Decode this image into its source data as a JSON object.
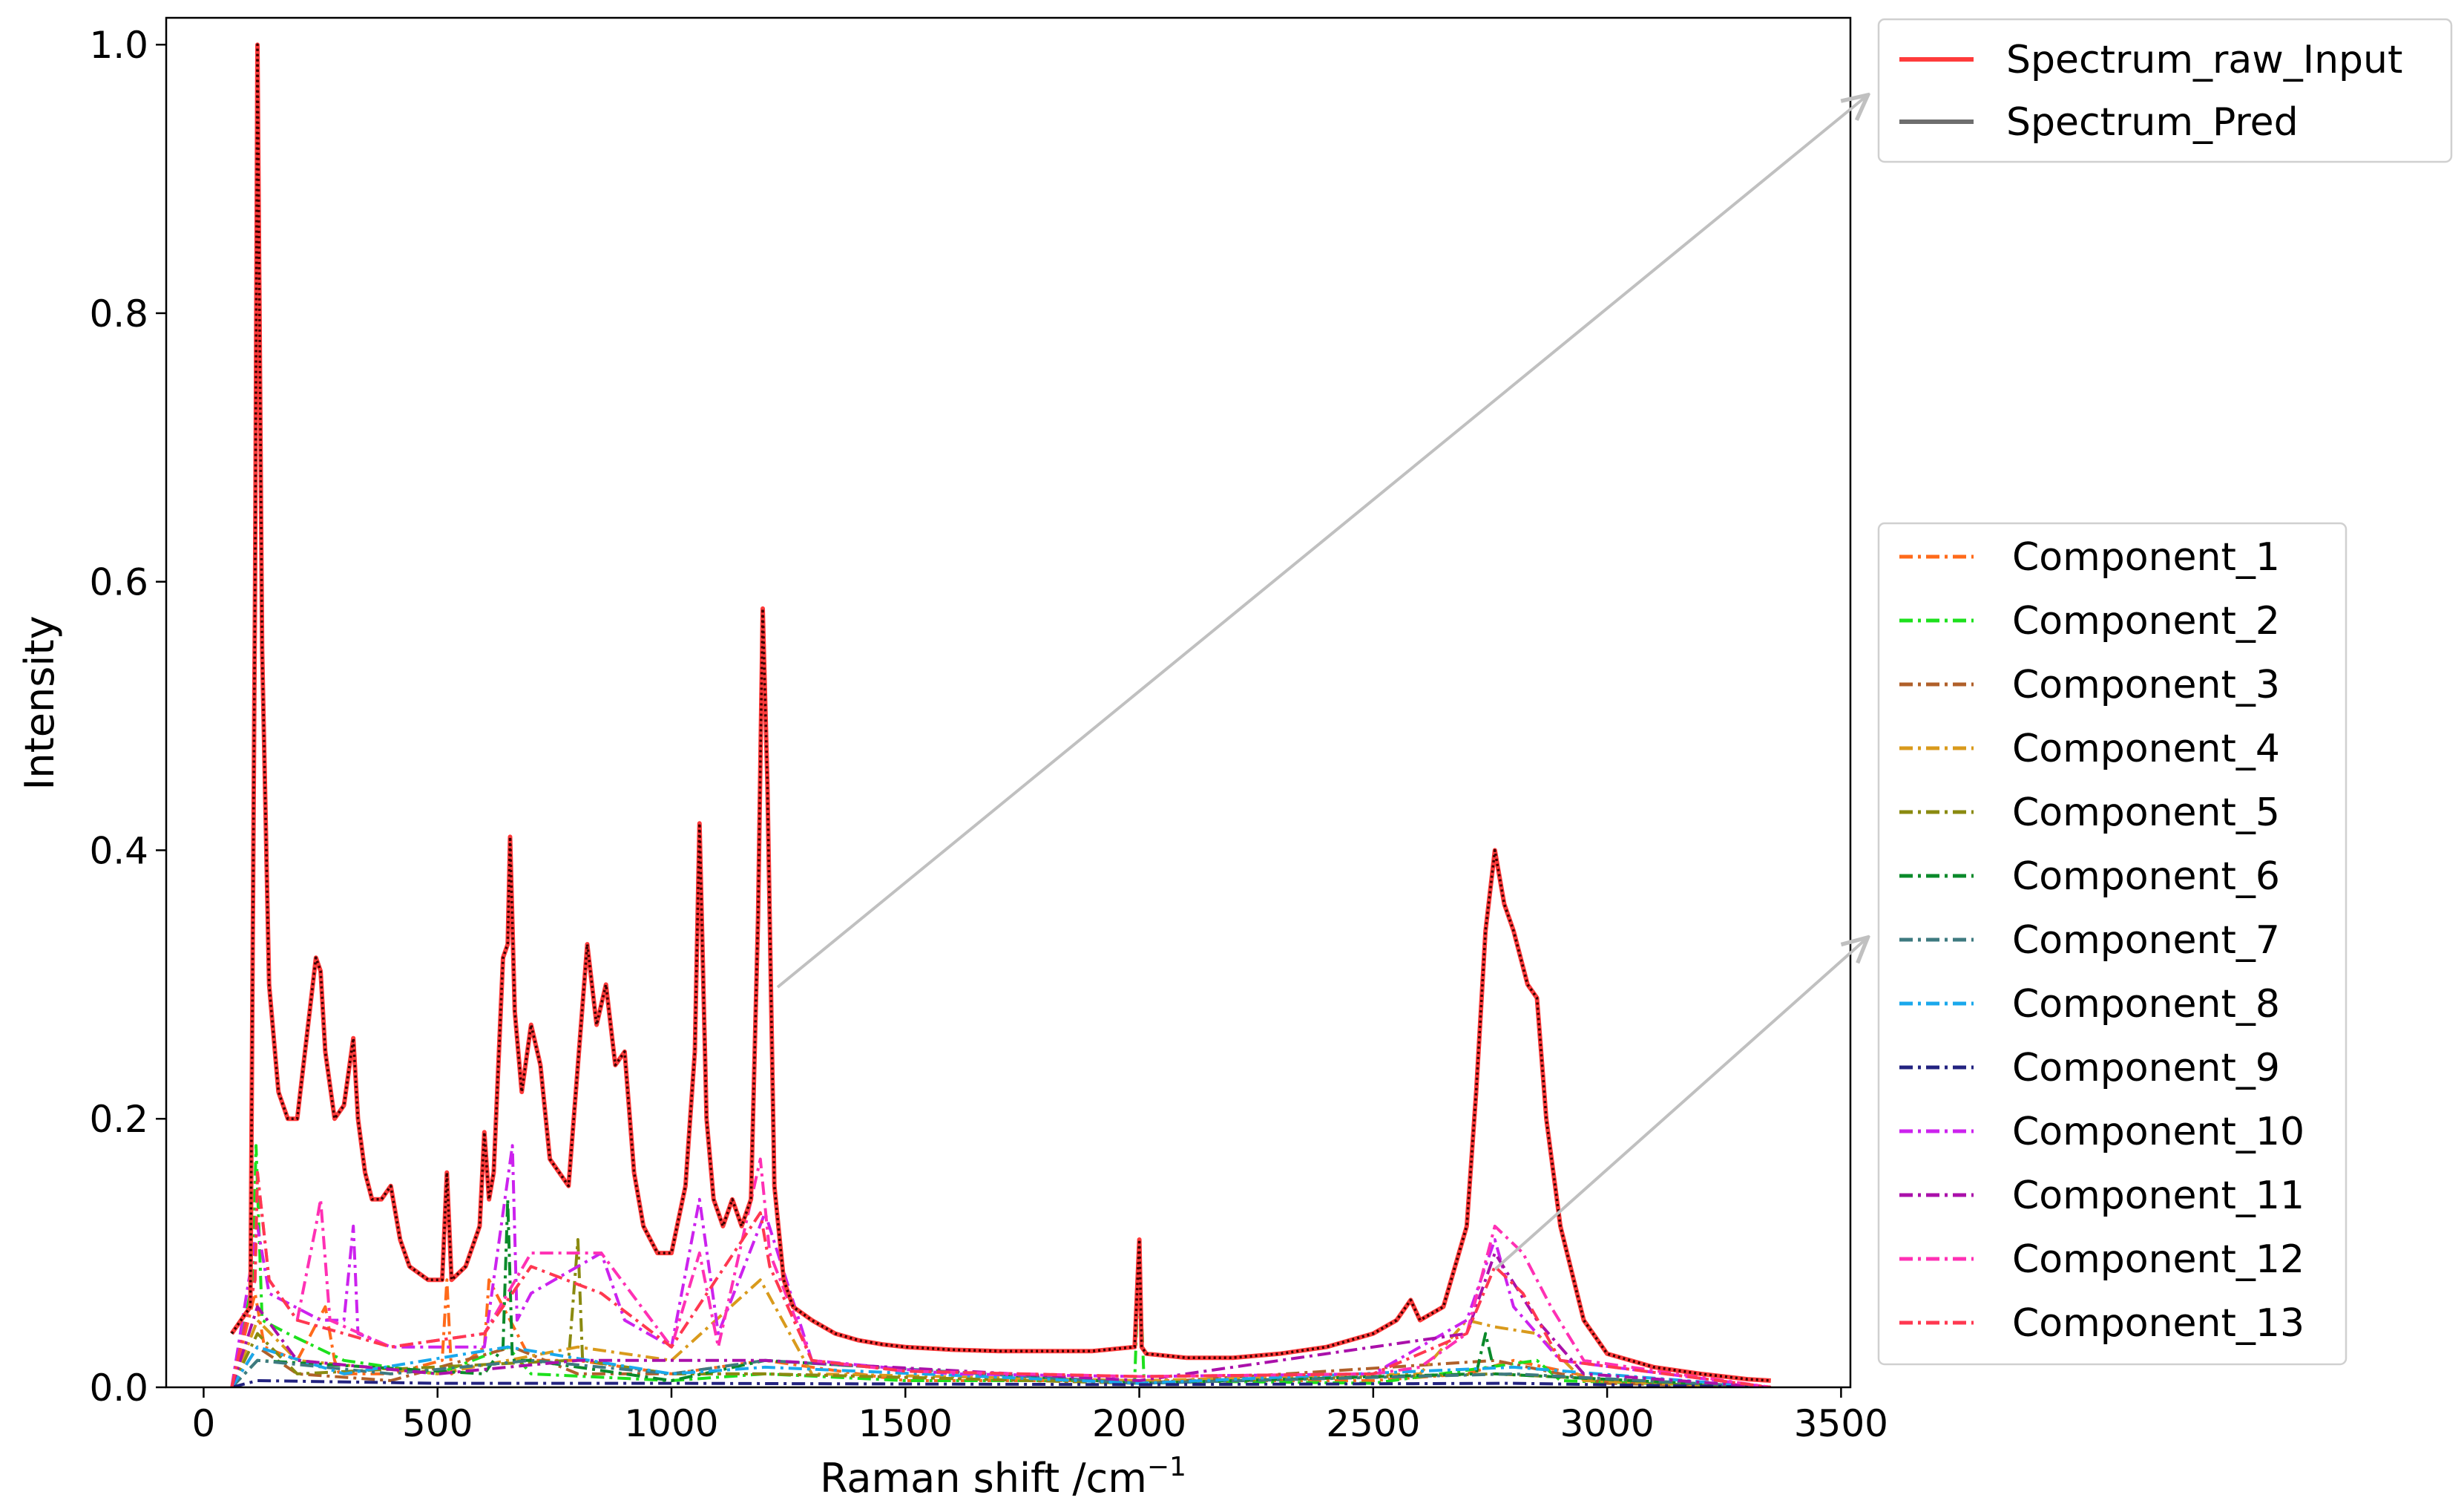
{
  "chart_data": {
    "type": "line",
    "title": "",
    "xlabel": "Raman shift /cm",
    "xlabel_superscript": "−1",
    "ylabel": "Intensity",
    "xlim": [
      -80,
      3520
    ],
    "ylim": [
      0,
      1.02
    ],
    "x_ticks": [
      0,
      500,
      1000,
      1500,
      2000,
      2500,
      3000,
      3500
    ],
    "y_ticks": [
      0.0,
      0.2,
      0.4,
      0.6,
      0.8,
      1.0
    ],
    "x_tick_labels": [
      "0",
      "500",
      "1000",
      "1500",
      "2000",
      "2500",
      "3000",
      "3500"
    ],
    "y_tick_labels": [
      "0.0",
      "0.2",
      "0.4",
      "0.6",
      "0.8",
      "1.0"
    ],
    "grid": false,
    "legend_main_placement": "outside top-right",
    "legend_components_placement": "outside middle-right",
    "series": [
      {
        "name": "Spectrum_raw_Input",
        "color": "#ff3b3b",
        "style": "solid",
        "x": [
          60,
          100,
          110,
          115,
          125,
          140,
          160,
          180,
          200,
          220,
          240,
          250,
          260,
          280,
          300,
          320,
          330,
          345,
          360,
          380,
          400,
          420,
          440,
          480,
          510,
          520,
          530,
          560,
          590,
          600,
          610,
          620,
          640,
          650,
          655,
          665,
          680,
          700,
          720,
          740,
          760,
          780,
          800,
          820,
          840,
          860,
          880,
          900,
          920,
          940,
          970,
          1000,
          1030,
          1050,
          1060,
          1075,
          1090,
          1110,
          1130,
          1150,
          1170,
          1185,
          1195,
          1205,
          1220,
          1240,
          1260,
          1300,
          1350,
          1400,
          1450,
          1500,
          1600,
          1700,
          1800,
          1900,
          1990,
          2000,
          2005,
          2015,
          2100,
          2200,
          2300,
          2400,
          2500,
          2550,
          2580,
          2600,
          2650,
          2700,
          2720,
          2740,
          2760,
          2780,
          2800,
          2830,
          2850,
          2870,
          2900,
          2950,
          3000,
          3100,
          3200,
          3300,
          3350
        ],
        "y": [
          0.04,
          0.06,
          0.6,
          1.0,
          0.55,
          0.3,
          0.22,
          0.2,
          0.2,
          0.26,
          0.32,
          0.31,
          0.25,
          0.2,
          0.21,
          0.26,
          0.2,
          0.16,
          0.14,
          0.14,
          0.15,
          0.11,
          0.09,
          0.08,
          0.08,
          0.16,
          0.08,
          0.09,
          0.12,
          0.19,
          0.14,
          0.16,
          0.32,
          0.33,
          0.41,
          0.28,
          0.22,
          0.27,
          0.24,
          0.17,
          0.16,
          0.15,
          0.24,
          0.33,
          0.27,
          0.3,
          0.24,
          0.25,
          0.16,
          0.12,
          0.1,
          0.1,
          0.15,
          0.25,
          0.42,
          0.2,
          0.14,
          0.12,
          0.14,
          0.12,
          0.14,
          0.35,
          0.58,
          0.45,
          0.15,
          0.08,
          0.06,
          0.05,
          0.04,
          0.035,
          0.032,
          0.03,
          0.028,
          0.027,
          0.027,
          0.027,
          0.03,
          0.11,
          0.03,
          0.025,
          0.022,
          0.022,
          0.025,
          0.03,
          0.04,
          0.05,
          0.065,
          0.05,
          0.06,
          0.12,
          0.22,
          0.34,
          0.4,
          0.36,
          0.34,
          0.3,
          0.29,
          0.2,
          0.12,
          0.05,
          0.025,
          0.015,
          0.01,
          0.006,
          0.005
        ]
      },
      {
        "name": "Spectrum_Pred",
        "color": "#6e6e6e",
        "style": "dotted-over-raw",
        "x": [
          60,
          100,
          110,
          115,
          125,
          140,
          160,
          180,
          200,
          220,
          240,
          250,
          260,
          280,
          300,
          320,
          330,
          345,
          360,
          380,
          400,
          420,
          440,
          480,
          510,
          520,
          530,
          560,
          590,
          600,
          610,
          620,
          640,
          650,
          655,
          665,
          680,
          700,
          720,
          740,
          760,
          780,
          800,
          820,
          840,
          860,
          880,
          900,
          920,
          940,
          970,
          1000,
          1030,
          1050,
          1060,
          1075,
          1090,
          1110,
          1130,
          1150,
          1170,
          1185,
          1195,
          1205,
          1220,
          1240,
          1260,
          1300,
          1350,
          1400,
          1450,
          1500,
          1600,
          1700,
          1800,
          1900,
          1990,
          2000,
          2005,
          2015,
          2100,
          2200,
          2300,
          2400,
          2500,
          2550,
          2580,
          2600,
          2650,
          2700,
          2720,
          2740,
          2760,
          2780,
          2800,
          2830,
          2850,
          2870,
          2900,
          2950,
          3000,
          3100,
          3200,
          3300,
          3350
        ],
        "y": [
          0.04,
          0.06,
          0.6,
          1.0,
          0.55,
          0.3,
          0.22,
          0.2,
          0.2,
          0.26,
          0.32,
          0.31,
          0.25,
          0.2,
          0.21,
          0.26,
          0.2,
          0.16,
          0.14,
          0.14,
          0.15,
          0.11,
          0.09,
          0.08,
          0.08,
          0.16,
          0.08,
          0.09,
          0.12,
          0.19,
          0.14,
          0.16,
          0.32,
          0.33,
          0.41,
          0.28,
          0.22,
          0.27,
          0.24,
          0.17,
          0.16,
          0.15,
          0.24,
          0.33,
          0.27,
          0.3,
          0.24,
          0.25,
          0.16,
          0.12,
          0.1,
          0.1,
          0.15,
          0.25,
          0.42,
          0.2,
          0.14,
          0.12,
          0.14,
          0.12,
          0.14,
          0.35,
          0.58,
          0.45,
          0.15,
          0.08,
          0.06,
          0.05,
          0.04,
          0.035,
          0.032,
          0.03,
          0.028,
          0.027,
          0.027,
          0.027,
          0.03,
          0.11,
          0.03,
          0.025,
          0.022,
          0.022,
          0.025,
          0.03,
          0.04,
          0.05,
          0.065,
          0.05,
          0.06,
          0.12,
          0.22,
          0.34,
          0.4,
          0.36,
          0.34,
          0.3,
          0.29,
          0.2,
          0.12,
          0.05,
          0.025,
          0.015,
          0.01,
          0.006,
          0.005
        ]
      },
      {
        "name": "Component_1",
        "color": "#ff6a1a",
        "style": "dashdot",
        "x": [
          60,
          110,
          130,
          200,
          260,
          280,
          290,
          400,
          510,
          520,
          530,
          600,
          610,
          700,
          800,
          1000,
          1200,
          1500,
          2000,
          2500,
          2700,
          2800,
          3000,
          3350
        ],
        "y": [
          0.0,
          0.07,
          0.03,
          0.02,
          0.06,
          0.02,
          0.01,
          0.01,
          0.02,
          0.08,
          0.01,
          0.03,
          0.08,
          0.02,
          0.02,
          0.01,
          0.02,
          0.005,
          0.005,
          0.005,
          0.01,
          0.02,
          0.005,
          0.0
        ]
      },
      {
        "name": "Component_2",
        "color": "#1de01d",
        "style": "dashdot",
        "x": [
          60,
          105,
          112,
          125,
          180,
          300,
          500,
          650,
          700,
          1000,
          1200,
          1500,
          1990,
          2000,
          2010,
          2500,
          2850,
          2900,
          3350
        ],
        "y": [
          0.0,
          0.08,
          0.18,
          0.05,
          0.04,
          0.02,
          0.01,
          0.03,
          0.01,
          0.005,
          0.01,
          0.005,
          0.005,
          0.1,
          0.005,
          0.003,
          0.02,
          0.005,
          0.0
        ]
      },
      {
        "name": "Component_3",
        "color": "#b0602a",
        "style": "dashdot",
        "x": [
          60,
          115,
          200,
          400,
          660,
          800,
          1200,
          2000,
          2760,
          3000,
          3350
        ],
        "y": [
          0.0,
          0.03,
          0.01,
          0.005,
          0.03,
          0.01,
          0.01,
          0.003,
          0.02,
          0.003,
          0.0
        ]
      },
      {
        "name": "Component_4",
        "color": "#d99a1c",
        "style": "dashdot",
        "x": [
          60,
          115,
          200,
          500,
          800,
          1000,
          1190,
          1300,
          2000,
          2600,
          2700,
          2760,
          2850,
          2950,
          3350
        ],
        "y": [
          0.0,
          0.05,
          0.02,
          0.01,
          0.03,
          0.02,
          0.08,
          0.01,
          0.005,
          0.01,
          0.05,
          0.045,
          0.04,
          0.005,
          0.0
        ]
      },
      {
        "name": "Component_5",
        "color": "#8a8a10",
        "style": "dashdot",
        "x": [
          60,
          115,
          200,
          780,
          800,
          810,
          1000,
          1200,
          2000,
          2760,
          3350
        ],
        "y": [
          0.0,
          0.04,
          0.01,
          0.02,
          0.11,
          0.02,
          0.01,
          0.01,
          0.003,
          0.01,
          0.0
        ]
      },
      {
        "name": "Component_6",
        "color": "#0a8a2a",
        "style": "dashdot",
        "x": [
          60,
          115,
          600,
          640,
          650,
          660,
          700,
          1000,
          1200,
          2000,
          2720,
          2740,
          2760,
          3350
        ],
        "y": [
          0.0,
          0.02,
          0.01,
          0.03,
          0.14,
          0.02,
          0.02,
          0.005,
          0.02,
          0.003,
          0.01,
          0.04,
          0.01,
          0.0
        ]
      },
      {
        "name": "Component_7",
        "color": "#3e7a80",
        "style": "dashdot",
        "x": [
          60,
          115,
          400,
          700,
          1000,
          1200,
          2000,
          2800,
          3350
        ],
        "y": [
          0.0,
          0.02,
          0.01,
          0.02,
          0.01,
          0.02,
          0.003,
          0.01,
          0.0
        ]
      },
      {
        "name": "Component_8",
        "color": "#1aa8ec",
        "style": "dashdot",
        "x": [
          60,
          115,
          300,
          650,
          1000,
          1200,
          2000,
          2800,
          3350
        ],
        "y": [
          0.0,
          0.03,
          0.01,
          0.03,
          0.01,
          0.015,
          0.003,
          0.015,
          0.0
        ]
      },
      {
        "name": "Component_9",
        "color": "#232380",
        "style": "dashdot",
        "x": [
          60,
          115,
          500,
          1000,
          2000,
          2800,
          3350
        ],
        "y": [
          0.0,
          0.005,
          0.003,
          0.003,
          0.002,
          0.003,
          0.0
        ]
      },
      {
        "name": "Component_10",
        "color": "#cc22ee",
        "style": "dashdot",
        "x": [
          60,
          115,
          140,
          250,
          300,
          320,
          330,
          400,
          600,
          660,
          670,
          700,
          850,
          900,
          1000,
          1060,
          1100,
          1200,
          1300,
          1600,
          2000,
          2500,
          2700,
          2760,
          2800,
          2850,
          2900,
          3350
        ],
        "y": [
          0.0,
          0.12,
          0.07,
          0.05,
          0.05,
          0.12,
          0.04,
          0.03,
          0.03,
          0.18,
          0.05,
          0.07,
          0.1,
          0.05,
          0.03,
          0.14,
          0.04,
          0.13,
          0.02,
          0.01,
          0.008,
          0.01,
          0.05,
          0.11,
          0.06,
          0.04,
          0.02,
          0.0
        ]
      },
      {
        "name": "Component_11",
        "color": "#aa10aa",
        "style": "dashdot",
        "x": [
          60,
          115,
          200,
          500,
          800,
          1200,
          2000,
          2700,
          2760,
          2850,
          2950,
          3350
        ],
        "y": [
          0.0,
          0.06,
          0.02,
          0.01,
          0.02,
          0.02,
          0.005,
          0.04,
          0.1,
          0.05,
          0.01,
          0.0
        ]
      },
      {
        "name": "Component_12",
        "color": "#ff30b4",
        "style": "dashdot",
        "x": [
          60,
          110,
          115,
          140,
          200,
          240,
          250,
          270,
          400,
          600,
          700,
          850,
          1000,
          1060,
          1100,
          1190,
          1210,
          1300,
          1500,
          2000,
          2500,
          2600,
          2700,
          2760,
          2820,
          2880,
          2950,
          3350
        ],
        "y": [
          0.0,
          0.08,
          0.16,
          0.08,
          0.05,
          0.12,
          0.14,
          0.05,
          0.03,
          0.04,
          0.1,
          0.1,
          0.03,
          0.1,
          0.03,
          0.17,
          0.1,
          0.02,
          0.012,
          0.008,
          0.01,
          0.015,
          0.04,
          0.12,
          0.1,
          0.06,
          0.02,
          0.0
        ]
      },
      {
        "name": "Component_13",
        "color": "#ff3850",
        "style": "dashdot",
        "x": [
          60,
          110,
          115,
          140,
          200,
          300,
          400,
          600,
          700,
          850,
          1000,
          1190,
          1210,
          1300,
          1500,
          2000,
          2500,
          2700,
          2760,
          2820,
          2900,
          3350
        ],
        "y": [
          0.0,
          0.08,
          0.16,
          0.08,
          0.05,
          0.04,
          0.03,
          0.04,
          0.09,
          0.07,
          0.03,
          0.13,
          0.09,
          0.02,
          0.012,
          0.008,
          0.01,
          0.04,
          0.09,
          0.07,
          0.02,
          0.0
        ]
      }
    ],
    "legend_main": [
      "Spectrum_raw_Input",
      "Spectrum_Pred"
    ],
    "legend_components": [
      "Component_1",
      "Component_2",
      "Component_3",
      "Component_4",
      "Component_5",
      "Component_6",
      "Component_7",
      "Component_8",
      "Component_9",
      "Component_10",
      "Component_11",
      "Component_12",
      "Component_13"
    ]
  }
}
